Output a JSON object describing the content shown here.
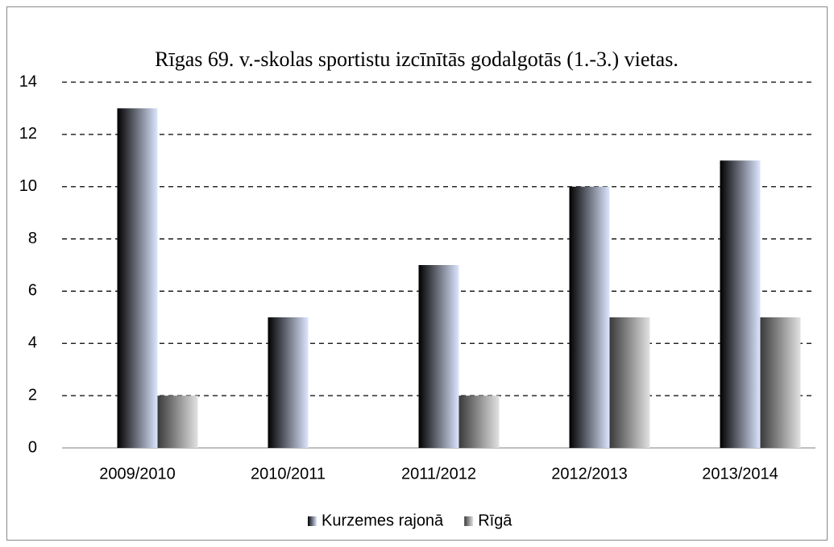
{
  "chart_data": {
    "type": "bar",
    "title": "Rīgas 69. v.-skolas sportistu izcīnītās godalgotās (1.-3.) vietas.",
    "categories": [
      "2009/2010",
      "2010/2011",
      "2011/2012",
      "2012/2013",
      "2013/2014"
    ],
    "series": [
      {
        "name": "Kurzemes rajonā",
        "color": [
          "#000000",
          "#dde6ff"
        ],
        "values": [
          13,
          5,
          7,
          10,
          11
        ]
      },
      {
        "name": "Rīgā",
        "color": [
          "#3a3a3a",
          "#e2e2e2"
        ],
        "values": [
          2,
          0,
          2,
          5,
          5
        ]
      }
    ],
    "ylim": [
      0,
      14
    ],
    "yticks": [
      0,
      2,
      4,
      6,
      8,
      10,
      12,
      14
    ],
    "grid": true,
    "legend": "bottom"
  }
}
